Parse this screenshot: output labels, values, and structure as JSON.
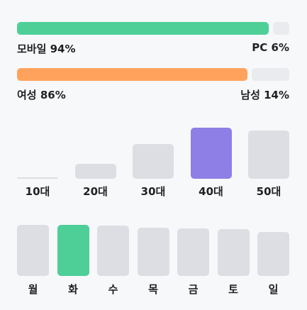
{
  "device_split": {
    "left_label": "모바일 94%",
    "right_label": "PC 6%",
    "left_value": 94,
    "right_value": 6,
    "left_color": "#4ecf98",
    "right_color": "#e9ebee"
  },
  "gender_split": {
    "left_label": "여성 86%",
    "right_label": "남성 14%",
    "left_value": 86,
    "right_value": 14,
    "left_color": "#ffa35c",
    "right_color": "#e9ebee"
  },
  "age_chart": {
    "highlight_color": "#8d7fe6",
    "base_color": "#dcdee3",
    "items": [
      {
        "label": "10대",
        "value": 1,
        "highlight": false
      },
      {
        "label": "20대",
        "value": 21,
        "highlight": false
      },
      {
        "label": "30대",
        "value": 48,
        "highlight": false
      },
      {
        "label": "40대",
        "value": 71,
        "highlight": true
      },
      {
        "label": "50대",
        "value": 67,
        "highlight": false
      }
    ]
  },
  "day_chart": {
    "highlight_color": "#4ecf98",
    "base_color": "#dcdee3",
    "items": [
      {
        "label": "월",
        "value": 71,
        "highlight": false
      },
      {
        "label": "화",
        "value": 71,
        "highlight": true
      },
      {
        "label": "수",
        "value": 70,
        "highlight": false
      },
      {
        "label": "목",
        "value": 67,
        "highlight": false
      },
      {
        "label": "금",
        "value": 66,
        "highlight": false
      },
      {
        "label": "토",
        "value": 65,
        "highlight": false
      },
      {
        "label": "일",
        "value": 61,
        "highlight": false
      }
    ]
  }
}
